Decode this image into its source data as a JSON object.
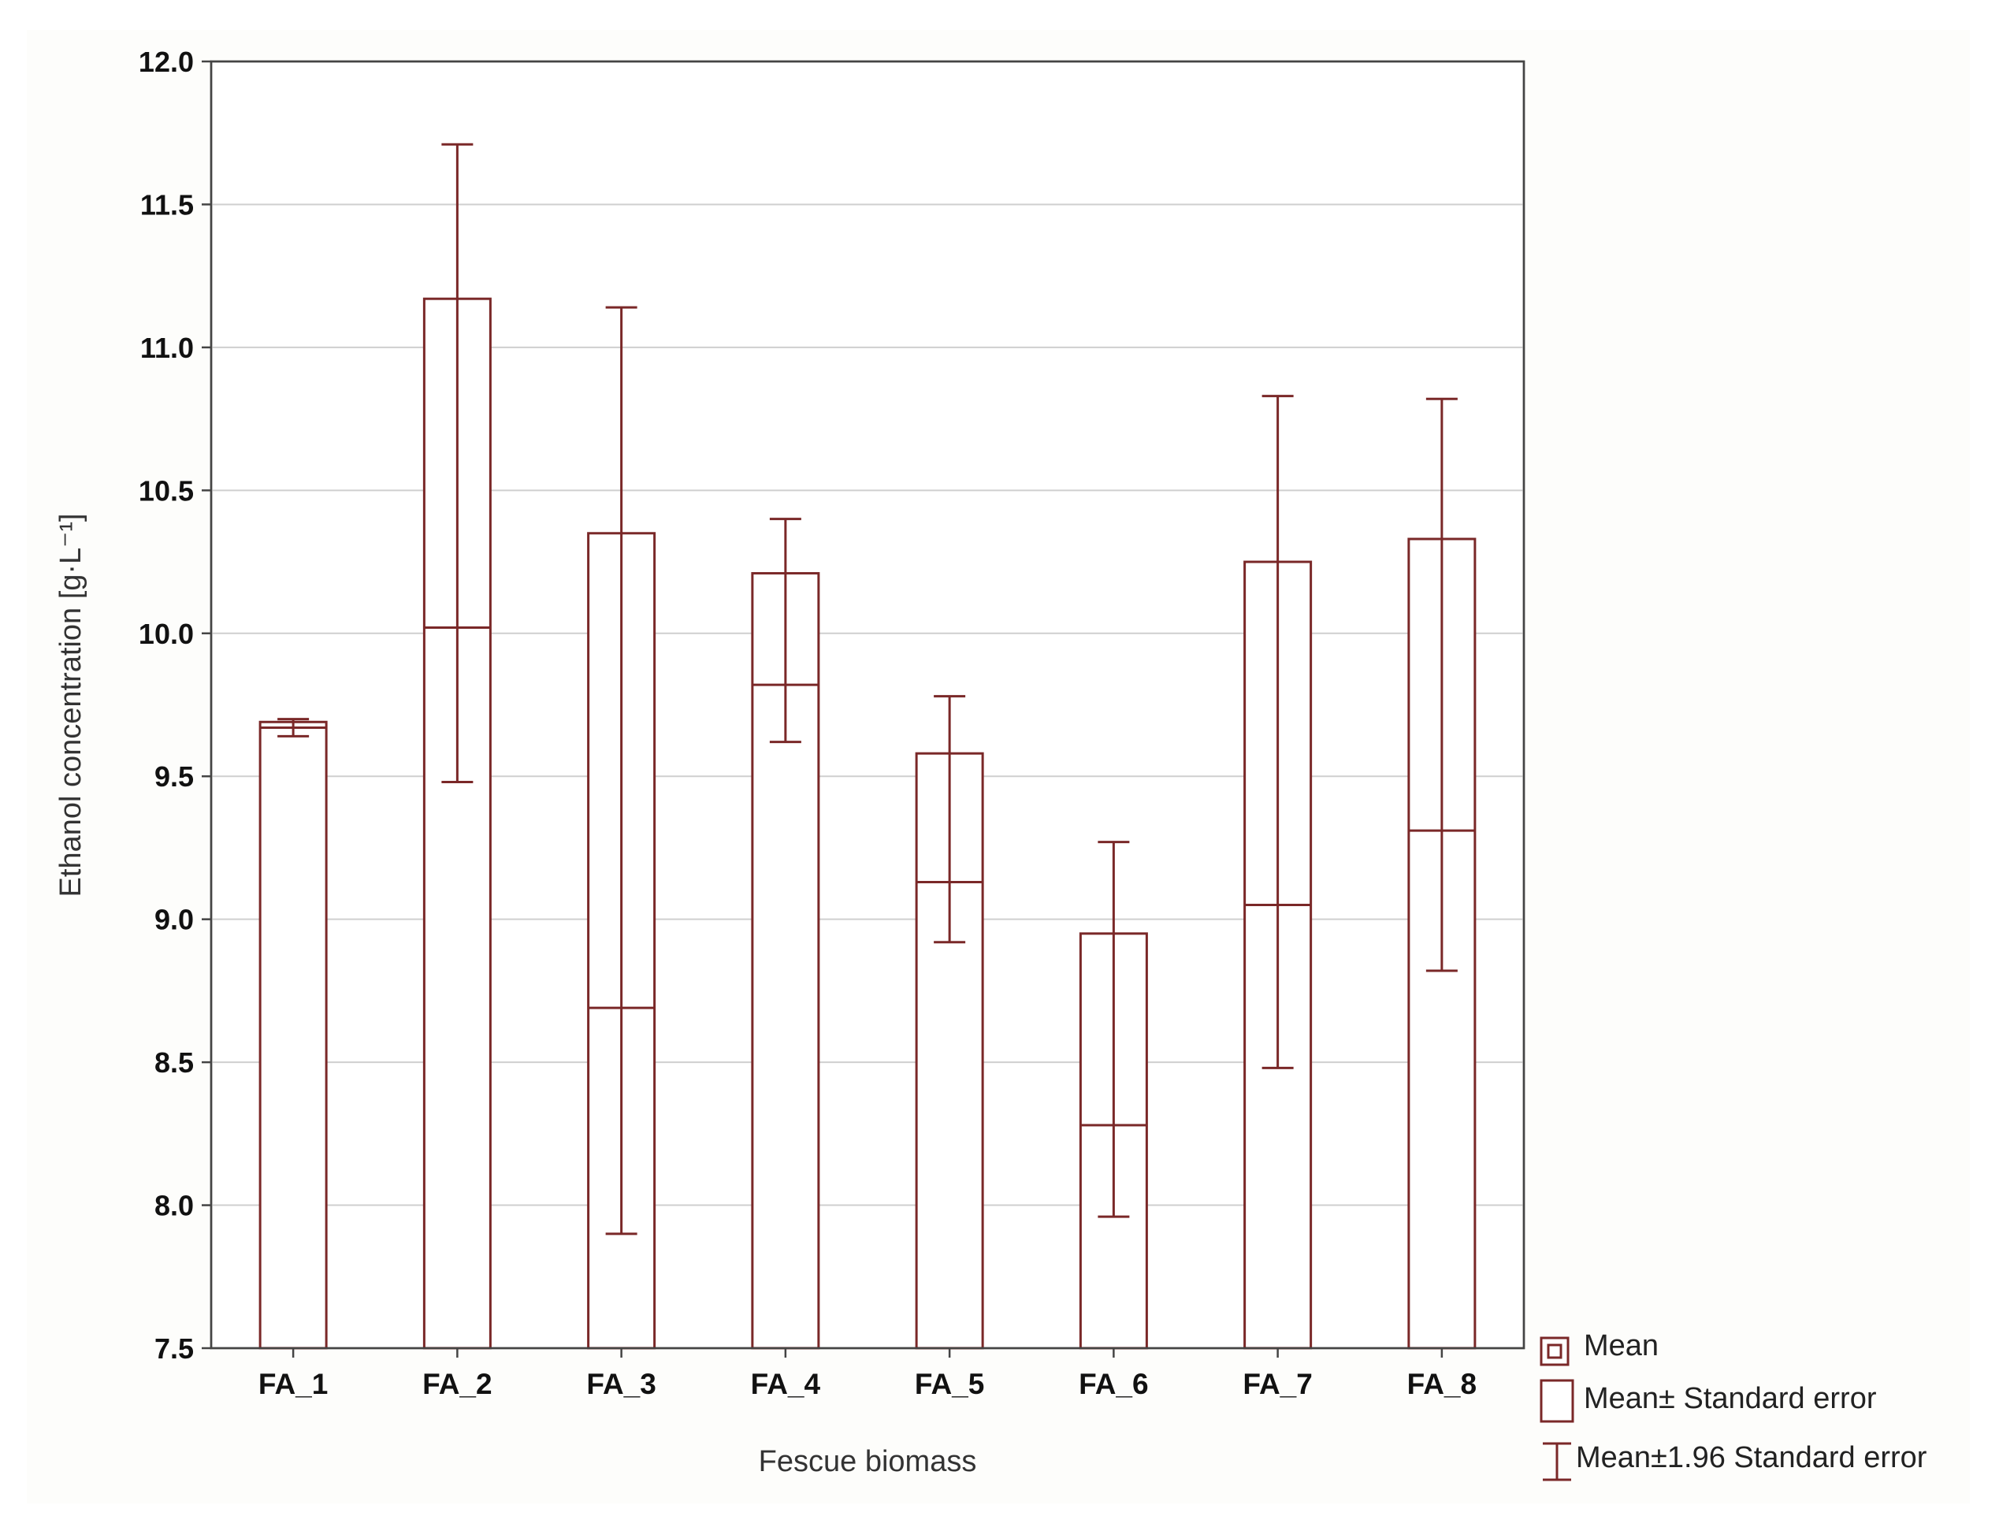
{
  "chart_data": {
    "type": "box",
    "xlabel": "Fescue biomass",
    "ylabel": "Ethanol concentration [g·L⁻¹]",
    "ylim": [
      7.5,
      12.0
    ],
    "yticks": [
      "7.5",
      "8.0",
      "8.5",
      "9.0",
      "9.5",
      "10.0",
      "10.5",
      "11.0",
      "11.5",
      "12.0"
    ],
    "grid": true,
    "legend_position": "bottom-right, outside plot",
    "categories": [
      "FA_1",
      "FA_2",
      "FA_3",
      "FA_4",
      "FA_5",
      "FA_6",
      "FA_7",
      "FA_8"
    ],
    "series": [
      {
        "name": "Mean",
        "values": [
          9.67,
          10.02,
          8.69,
          9.82,
          9.13,
          8.28,
          9.05,
          9.31
        ]
      },
      {
        "name": "Mean± Standard error",
        "lower": [
          9.65,
          10.02,
          8.69,
          9.82,
          9.13,
          8.28,
          9.05,
          9.31
        ],
        "upper": [
          9.69,
          11.17,
          10.35,
          10.21,
          9.58,
          8.95,
          10.25,
          10.33
        ]
      },
      {
        "name": "Mean±1.96 Standard error",
        "lower": [
          9.64,
          9.48,
          7.9,
          9.62,
          8.92,
          7.96,
          8.48,
          8.82
        ],
        "upper": [
          9.7,
          11.71,
          11.14,
          10.4,
          9.78,
          9.27,
          10.83,
          10.82
        ]
      }
    ],
    "colors": {
      "marks": "#7a2828",
      "grid": "#cfcfcf",
      "frame": "#444444",
      "background": "#ffffff"
    }
  },
  "legend": {
    "mean": "Mean",
    "se": "Mean± Standard error",
    "ci": "Mean±1.96 Standard error"
  }
}
